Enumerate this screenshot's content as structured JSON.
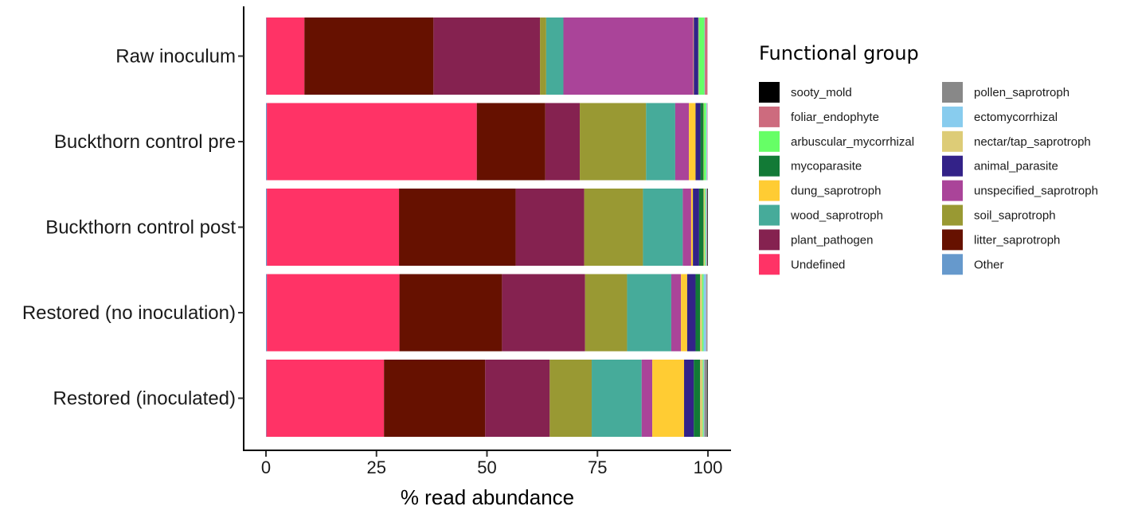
{
  "chart_data": {
    "type": "bar",
    "orientation": "horizontal",
    "stacked": true,
    "xlabel": "% read abundance",
    "ylabel": "",
    "xlim": [
      0,
      100
    ],
    "xticks": [
      0,
      25,
      50,
      75,
      100
    ],
    "grid": false,
    "legend_title": "Functional group",
    "legend_position": "right",
    "categories": [
      "Raw inoculum",
      "Buckthorn control pre",
      "Buckthorn control post",
      "Restored (no inoculation)",
      "Restored (inoculated)"
    ],
    "legend": [
      {
        "key": "sooty_mold",
        "color": "#000000"
      },
      {
        "key": "foliar_endophyte",
        "color": "#CD6B7E"
      },
      {
        "key": "arbuscular_mycorrhizal",
        "color": "#66FF66"
      },
      {
        "key": "mycoparasite",
        "color": "#127A36"
      },
      {
        "key": "dung_saprotroph",
        "color": "#FFCC33"
      },
      {
        "key": "wood_saprotroph",
        "color": "#46AB9A"
      },
      {
        "key": "plant_pathogen",
        "color": "#852250"
      },
      {
        "key": "Undefined",
        "color": "#FF3366"
      },
      {
        "key": "pollen_saprotroph",
        "color": "#888888"
      },
      {
        "key": "ectomycorrhizal",
        "color": "#88CCEE"
      },
      {
        "key": "nectar/tap_saprotroph",
        "color": "#DDCC77"
      },
      {
        "key": "animal_parasite",
        "color": "#332288"
      },
      {
        "key": "unspecified_saprotroph",
        "color": "#AA4499"
      },
      {
        "key": "soil_saprotroph",
        "color": "#999933"
      },
      {
        "key": "litter_saprotroph",
        "color": "#661100"
      },
      {
        "key": "Other",
        "color": "#6699CC"
      }
    ],
    "stack_order": [
      "Other",
      "Undefined",
      "litter_saprotroph",
      "plant_pathogen",
      "soil_saprotroph",
      "wood_saprotroph",
      "unspecified_saprotroph",
      "dung_saprotroph",
      "animal_parasite",
      "mycoparasite",
      "nectar/tap_saprotroph",
      "arbuscular_mycorrhizal",
      "ectomycorrhizal",
      "foliar_endophyte",
      "pollen_saprotroph",
      "sooty_mold"
    ],
    "series": [
      {
        "name": "Other",
        "values": [
          0.1,
          0.2,
          0.2,
          0.2,
          0.1
        ]
      },
      {
        "name": "Undefined",
        "values": [
          8.6,
          47.5,
          29.9,
          30.0,
          26.6
        ]
      },
      {
        "name": "litter_saprotroph",
        "values": [
          29.2,
          15.5,
          26.4,
          23.2,
          22.9
        ]
      },
      {
        "name": "plant_pathogen",
        "values": [
          24.1,
          7.8,
          15.5,
          18.8,
          14.6
        ]
      },
      {
        "name": "soil_saprotroph",
        "values": [
          1.4,
          15.0,
          13.3,
          9.5,
          9.5
        ]
      },
      {
        "name": "wood_saprotroph",
        "values": [
          3.9,
          6.6,
          9.0,
          10.0,
          11.3
        ]
      },
      {
        "name": "unspecified_saprotroph",
        "values": [
          29.4,
          3.1,
          1.9,
          2.2,
          2.4
        ]
      },
      {
        "name": "dung_saprotroph",
        "values": [
          0.1,
          1.5,
          0.4,
          1.4,
          7.2
        ]
      },
      {
        "name": "animal_parasite",
        "values": [
          1.0,
          1.1,
          1.4,
          1.9,
          2.2
        ]
      },
      {
        "name": "mycoparasite",
        "values": [
          0.1,
          0.7,
          1.0,
          1.0,
          1.4
        ]
      },
      {
        "name": "nectar/tap_saprotroph",
        "values": [
          0.1,
          0.1,
          0.3,
          0.5,
          0.6
        ]
      },
      {
        "name": "arbuscular_mycorrhizal",
        "values": [
          1.2,
          0.5,
          0.2,
          0.3,
          0.2
        ]
      },
      {
        "name": "ectomycorrhizal",
        "values": [
          0.1,
          0.2,
          0.2,
          0.6,
          0.2
        ]
      },
      {
        "name": "foliar_endophyte",
        "values": [
          0.6,
          0.1,
          0.1,
          0.1,
          0.1
        ]
      },
      {
        "name": "pollen_saprotroph",
        "values": [
          0.0,
          0.0,
          0.1,
          0.2,
          0.6
        ]
      },
      {
        "name": "sooty_mold",
        "values": [
          0.0,
          0.0,
          0.1,
          0.0,
          0.1
        ]
      }
    ]
  }
}
